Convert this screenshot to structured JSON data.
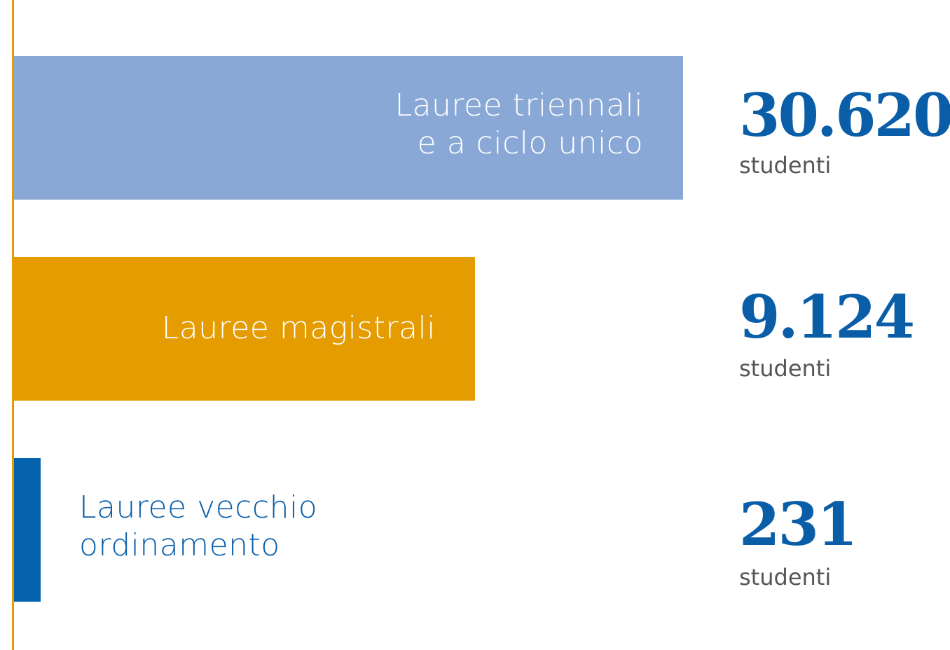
{
  "items": [
    {
      "label": [
        "Lauree triennali",
        "e a ciclo unico"
      ],
      "value": "30.620",
      "unit": "studenti"
    },
    {
      "label": [
        "Lauree magistrali"
      ],
      "value": "9.124",
      "unit": "studenti"
    },
    {
      "label": [
        "Lauree vecchio",
        "ordinamento"
      ],
      "value": "231",
      "unit": "studenti"
    }
  ]
}
